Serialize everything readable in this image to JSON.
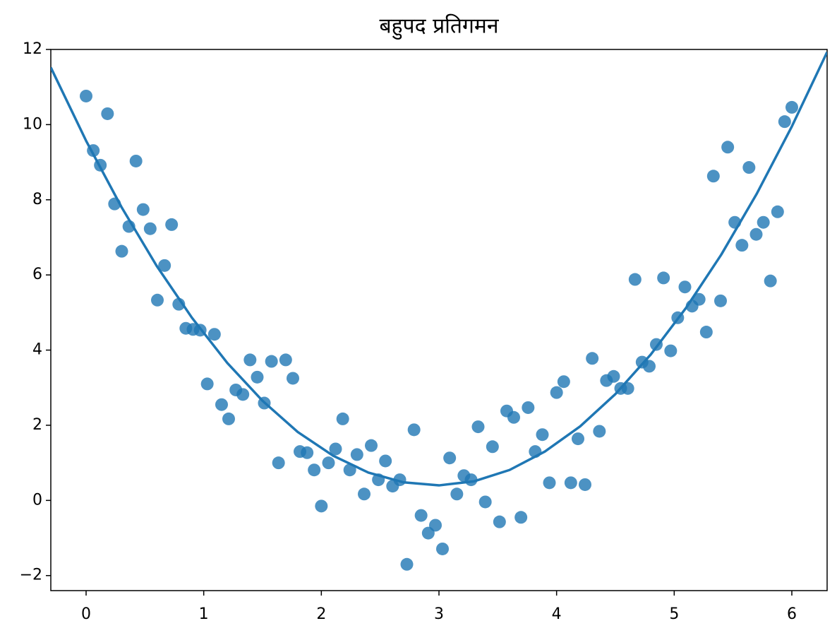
{
  "chart_data": {
    "type": "scatter",
    "title": "बहुपद प्रतिगमन",
    "xlim": [
      -0.3,
      6.3
    ],
    "ylim": [
      -2.4,
      12
    ],
    "xticks": [
      0,
      1,
      2,
      3,
      4,
      5,
      6
    ],
    "yticks": [
      {
        "value": -2,
        "label": "−2"
      },
      0,
      2,
      4,
      6,
      8,
      10,
      12
    ],
    "series": [
      {
        "type": "scatter",
        "color": "#1f77b4",
        "x": [
          0,
          0.061,
          0.121,
          0.182,
          0.242,
          0.303,
          0.364,
          0.424,
          0.485,
          0.545,
          0.606,
          0.667,
          0.727,
          0.788,
          0.848,
          0.909,
          0.97,
          1.03,
          1.091,
          1.152,
          1.212,
          1.273,
          1.333,
          1.394,
          1.455,
          1.515,
          1.576,
          1.636,
          1.697,
          1.758,
          1.818,
          1.879,
          1.939,
          2.0,
          2.061,
          2.121,
          2.182,
          2.242,
          2.303,
          2.364,
          2.424,
          2.485,
          2.545,
          2.606,
          2.667,
          2.727,
          2.788,
          2.848,
          2.909,
          2.97,
          3.03,
          3.091,
          3.152,
          3.212,
          3.273,
          3.333,
          3.394,
          3.455,
          3.515,
          3.576,
          3.636,
          3.697,
          3.758,
          3.818,
          3.879,
          3.939,
          4.0,
          4.061,
          4.121,
          4.182,
          4.242,
          4.303,
          4.364,
          4.424,
          4.485,
          4.545,
          4.606,
          4.667,
          4.727,
          4.788,
          4.848,
          4.909,
          4.97,
          5.03,
          5.091,
          5.152,
          5.212,
          5.273,
          5.333,
          5.394,
          5.455,
          5.515,
          5.576,
          5.636,
          5.697,
          5.758,
          5.818,
          5.879,
          5.939,
          6.0
        ],
        "values": [
          10.76,
          9.31,
          8.92,
          10.29,
          7.89,
          6.63,
          7.29,
          9.03,
          7.74,
          7.23,
          5.33,
          6.25,
          7.34,
          5.22,
          4.58,
          4.55,
          4.53,
          3.1,
          4.42,
          2.55,
          2.17,
          2.94,
          2.82,
          3.74,
          3.28,
          2.59,
          3.7,
          1.0,
          3.74,
          3.25,
          1.3,
          1.27,
          0.81,
          -0.15,
          1.0,
          1.37,
          2.17,
          0.81,
          1.22,
          0.17,
          1.46,
          0.55,
          1.05,
          0.38,
          0.55,
          -1.7,
          1.88,
          -0.4,
          -0.87,
          -0.66,
          -1.29,
          1.13,
          0.17,
          0.66,
          0.55,
          1.96,
          -0.04,
          1.43,
          -0.57,
          2.38,
          2.21,
          -0.45,
          2.47,
          1.3,
          1.75,
          0.47,
          2.87,
          3.16,
          0.47,
          1.64,
          0.42,
          3.78,
          1.84,
          3.19,
          3.3,
          2.98,
          2.98,
          5.88,
          3.68,
          3.57,
          4.15,
          5.92,
          3.98,
          4.86,
          5.68,
          5.17,
          5.35,
          4.48,
          8.63,
          5.31,
          9.4,
          7.4,
          6.79,
          8.86,
          7.08,
          7.4,
          5.84,
          7.68,
          10.08,
          10.46
        ]
      },
      {
        "type": "line",
        "color": "#1f77b4",
        "x": [
          -0.3,
          0,
          0.3,
          0.6,
          0.9,
          1.2,
          1.5,
          1.8,
          2.1,
          2.4,
          2.7,
          3.0,
          3.3,
          3.6,
          3.9,
          4.2,
          4.5,
          4.8,
          5.1,
          5.4,
          5.7,
          6.0,
          6.3
        ],
        "values": [
          11.52,
          9.57,
          7.81,
          6.24,
          4.86,
          3.66,
          2.65,
          1.82,
          1.19,
          0.74,
          0.48,
          0.4,
          0.51,
          0.81,
          1.3,
          1.97,
          2.83,
          3.88,
          5.12,
          6.54,
          8.15,
          9.95,
          11.93
        ]
      }
    ]
  }
}
